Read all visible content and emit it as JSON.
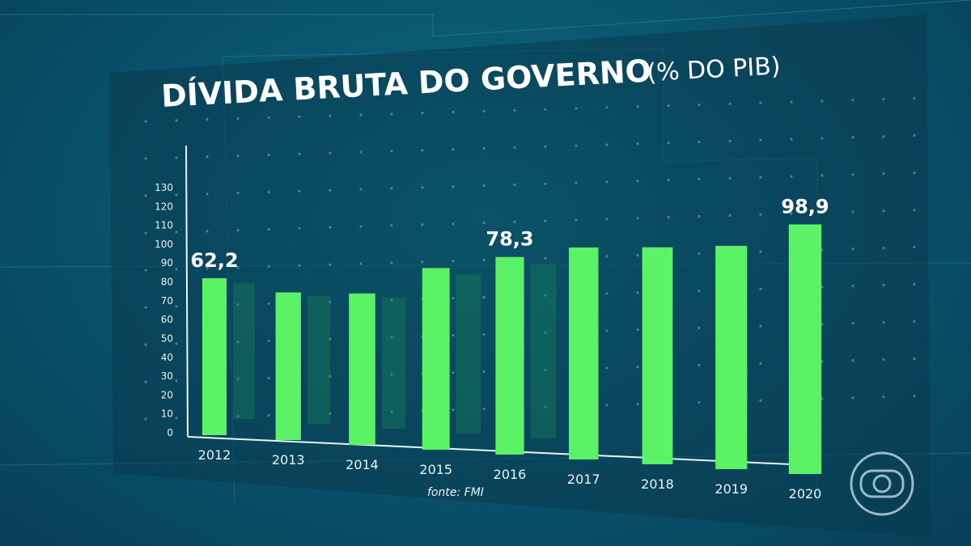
{
  "colors": {
    "bar": "#5cf266",
    "bar_shadow": "#1c8a55",
    "text": "#ffffff",
    "panel": "#0a3a4e"
  },
  "chart_data": {
    "type": "bar",
    "title": "DÍVIDA BRUTA DO GOVERNO",
    "subtitle": "(% DO PIB)",
    "source": "fonte: FMI",
    "categories": [
      "2012",
      "2013",
      "2014",
      "2015",
      "2016",
      "2017",
      "2018",
      "2019",
      "2020"
    ],
    "values": [
      62.2,
      58.5,
      60.0,
      72.0,
      78.3,
      84.0,
      86.0,
      88.5,
      98.9
    ],
    "value_labels": [
      "62,2",
      "",
      "",
      "",
      "78,3",
      "",
      "",
      "",
      "98,9"
    ],
    "y_ticks": [
      "0",
      "10",
      "20",
      "30",
      "40",
      "50",
      "60",
      "70",
      "80",
      "90",
      "100",
      "110",
      "120",
      "130"
    ],
    "ylim": [
      0,
      130
    ],
    "grid": false
  },
  "logo": {
    "name": "globo-logo"
  }
}
